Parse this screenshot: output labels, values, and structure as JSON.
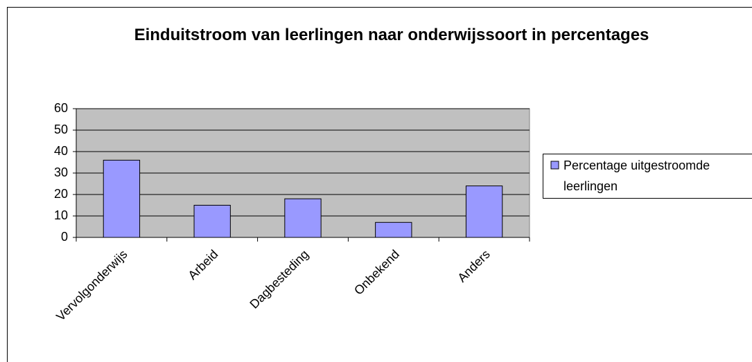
{
  "chart_data": {
    "type": "bar",
    "title": "Einduitstroom van leerlingen naar onderwijssoort in percentages",
    "categories": [
      "Vervolgonderwijs",
      "Arbeid",
      "Dagbesteding",
      "Onbekend",
      "Anders"
    ],
    "series": [
      {
        "name": "Percentage uitgestroomde leerlingen",
        "color": "#9999ff",
        "values": [
          36,
          15,
          18,
          7,
          24
        ]
      }
    ],
    "ylim": [
      0,
      60
    ],
    "yticks": [
      0,
      10,
      20,
      30,
      40,
      50,
      60
    ],
    "grid": true,
    "legend": "right"
  }
}
